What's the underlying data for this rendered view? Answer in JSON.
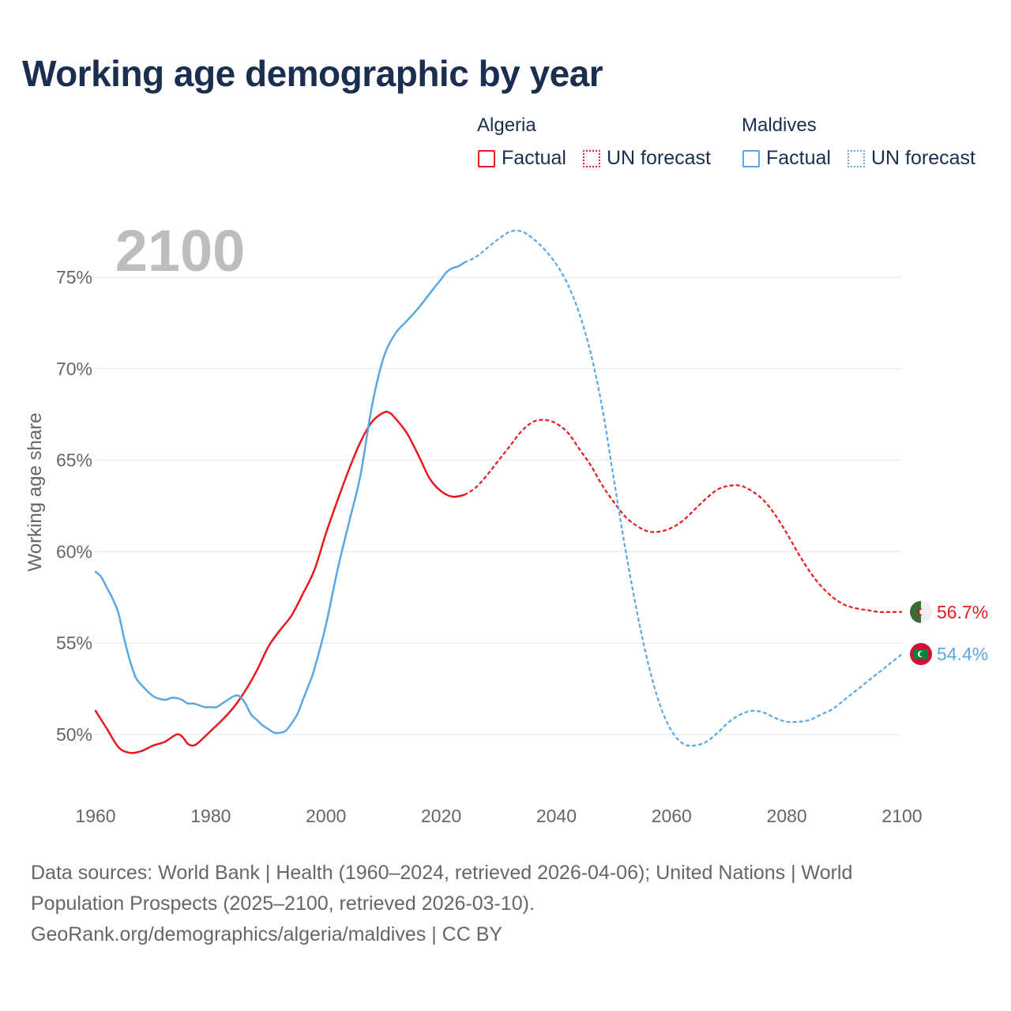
{
  "title": "Working age demographic by year",
  "legend": {
    "groups": [
      {
        "name": "Algeria",
        "color": "#e8191e",
        "items": [
          {
            "label": "Factual",
            "style": "solid"
          },
          {
            "label": "UN forecast",
            "style": "dotted"
          }
        ]
      },
      {
        "name": "Maldives",
        "color": "#5aa7e3",
        "items": [
          {
            "label": "Factual",
            "style": "solid"
          },
          {
            "label": "UN forecast",
            "style": "dotted"
          }
        ]
      }
    ]
  },
  "year_watermark": "2100",
  "footer": {
    "line1": "Data sources: World Bank | Health (1960–2024, retrieved 2026-04-06); United Nations | World",
    "line2": "Population Prospects (2025–2100, retrieved 2026-03-10).",
    "line3": "GeoRank.org/demographics/algeria/maldives | CC BY"
  },
  "chart_data": {
    "type": "line",
    "title": "Working age demographic by year",
    "xlabel": "",
    "ylabel": "Working age share",
    "xlim": [
      1960,
      2100
    ],
    "ylim": [
      47,
      79
    ],
    "xticks": [
      1960,
      1980,
      2000,
      2020,
      2040,
      2060,
      2080,
      2100
    ],
    "xtick_labels": [
      "1960",
      "1980",
      "2000",
      "2020",
      "2040",
      "2060",
      "2080",
      "2100"
    ],
    "yticks": [
      50,
      55,
      60,
      65,
      70,
      75
    ],
    "ytick_labels": [
      "50%",
      "55%",
      "60%",
      "65%",
      "70%",
      "75%"
    ],
    "grid": true,
    "forecast_start": 2024,
    "series": [
      {
        "name": "Algeria",
        "color": "#e8191e",
        "end_label": "56.7%",
        "flag": "algeria",
        "points": [
          [
            1960,
            51.3
          ],
          [
            1962,
            50.3
          ],
          [
            1964,
            49.3
          ],
          [
            1966,
            49.0
          ],
          [
            1968,
            49.1
          ],
          [
            1970,
            49.4
          ],
          [
            1972,
            49.6
          ],
          [
            1974,
            50.0
          ],
          [
            1975,
            49.9
          ],
          [
            1976,
            49.5
          ],
          [
            1977,
            49.4
          ],
          [
            1978,
            49.6
          ],
          [
            1980,
            50.2
          ],
          [
            1982,
            50.8
          ],
          [
            1984,
            51.5
          ],
          [
            1986,
            52.4
          ],
          [
            1988,
            53.5
          ],
          [
            1990,
            54.8
          ],
          [
            1992,
            55.7
          ],
          [
            1994,
            56.5
          ],
          [
            1996,
            57.7
          ],
          [
            1998,
            59.0
          ],
          [
            2000,
            61.0
          ],
          [
            2002,
            62.8
          ],
          [
            2004,
            64.5
          ],
          [
            2006,
            66.0
          ],
          [
            2008,
            67.1
          ],
          [
            2010,
            67.6
          ],
          [
            2011,
            67.6
          ],
          [
            2012,
            67.3
          ],
          [
            2014,
            66.5
          ],
          [
            2016,
            65.3
          ],
          [
            2018,
            64.0
          ],
          [
            2020,
            63.3
          ],
          [
            2022,
            63.0
          ],
          [
            2024,
            63.1
          ],
          [
            2026,
            63.5
          ],
          [
            2028,
            64.2
          ],
          [
            2030,
            65.0
          ],
          [
            2032,
            65.8
          ],
          [
            2034,
            66.6
          ],
          [
            2036,
            67.1
          ],
          [
            2038,
            67.2
          ],
          [
            2040,
            67.0
          ],
          [
            2042,
            66.5
          ],
          [
            2044,
            65.6
          ],
          [
            2046,
            64.7
          ],
          [
            2048,
            63.6
          ],
          [
            2050,
            62.7
          ],
          [
            2052,
            61.9
          ],
          [
            2054,
            61.4
          ],
          [
            2056,
            61.1
          ],
          [
            2058,
            61.1
          ],
          [
            2060,
            61.3
          ],
          [
            2062,
            61.7
          ],
          [
            2064,
            62.3
          ],
          [
            2066,
            62.9
          ],
          [
            2068,
            63.4
          ],
          [
            2070,
            63.6
          ],
          [
            2072,
            63.6
          ],
          [
            2074,
            63.3
          ],
          [
            2076,
            62.8
          ],
          [
            2078,
            62.0
          ],
          [
            2080,
            61.0
          ],
          [
            2082,
            59.9
          ],
          [
            2084,
            58.9
          ],
          [
            2086,
            58.1
          ],
          [
            2088,
            57.5
          ],
          [
            2090,
            57.1
          ],
          [
            2092,
            56.9
          ],
          [
            2094,
            56.8
          ],
          [
            2096,
            56.7
          ],
          [
            2098,
            56.7
          ],
          [
            2100,
            56.7
          ]
        ]
      },
      {
        "name": "Maldives",
        "color": "#5aa7e3",
        "end_label": "54.4%",
        "flag": "maldives",
        "points": [
          [
            1960,
            58.9
          ],
          [
            1961,
            58.6
          ],
          [
            1962,
            58.0
          ],
          [
            1963,
            57.4
          ],
          [
            1964,
            56.6
          ],
          [
            1965,
            55.2
          ],
          [
            1966,
            54.0
          ],
          [
            1967,
            53.1
          ],
          [
            1968,
            52.7
          ],
          [
            1970,
            52.1
          ],
          [
            1972,
            51.9
          ],
          [
            1973,
            52.0
          ],
          [
            1974,
            52.0
          ],
          [
            1975,
            51.9
          ],
          [
            1976,
            51.7
          ],
          [
            1977,
            51.7
          ],
          [
            1978,
            51.6
          ],
          [
            1979,
            51.5
          ],
          [
            1980,
            51.5
          ],
          [
            1981,
            51.5
          ],
          [
            1982,
            51.7
          ],
          [
            1983,
            51.9
          ],
          [
            1984,
            52.1
          ],
          [
            1985,
            52.1
          ],
          [
            1986,
            51.7
          ],
          [
            1987,
            51.1
          ],
          [
            1988,
            50.8
          ],
          [
            1989,
            50.5
          ],
          [
            1990,
            50.3
          ],
          [
            1991,
            50.1
          ],
          [
            1992,
            50.1
          ],
          [
            1993,
            50.2
          ],
          [
            1994,
            50.6
          ],
          [
            1995,
            51.1
          ],
          [
            1996,
            51.9
          ],
          [
            1997,
            52.7
          ],
          [
            1998,
            53.6
          ],
          [
            2000,
            56.0
          ],
          [
            2002,
            59.0
          ],
          [
            2004,
            61.6
          ],
          [
            2006,
            64.2
          ],
          [
            2008,
            68.0
          ],
          [
            2010,
            70.6
          ],
          [
            2012,
            71.9
          ],
          [
            2014,
            72.6
          ],
          [
            2016,
            73.3
          ],
          [
            2018,
            74.1
          ],
          [
            2020,
            74.9
          ],
          [
            2021,
            75.3
          ],
          [
            2022,
            75.5
          ],
          [
            2023,
            75.6
          ],
          [
            2024,
            75.8
          ],
          [
            2026,
            76.1
          ],
          [
            2028,
            76.6
          ],
          [
            2030,
            77.1
          ],
          [
            2032,
            77.5
          ],
          [
            2034,
            77.5
          ],
          [
            2036,
            77.1
          ],
          [
            2038,
            76.5
          ],
          [
            2040,
            75.7
          ],
          [
            2042,
            74.6
          ],
          [
            2044,
            73.0
          ],
          [
            2046,
            70.8
          ],
          [
            2048,
            67.8
          ],
          [
            2050,
            63.9
          ],
          [
            2052,
            60.1
          ],
          [
            2054,
            56.7
          ],
          [
            2056,
            53.8
          ],
          [
            2058,
            51.6
          ],
          [
            2060,
            50.2
          ],
          [
            2062,
            49.5
          ],
          [
            2064,
            49.4
          ],
          [
            2066,
            49.6
          ],
          [
            2068,
            50.1
          ],
          [
            2070,
            50.7
          ],
          [
            2072,
            51.1
          ],
          [
            2074,
            51.3
          ],
          [
            2076,
            51.2
          ],
          [
            2078,
            50.9
          ],
          [
            2080,
            50.7
          ],
          [
            2082,
            50.7
          ],
          [
            2084,
            50.8
          ],
          [
            2086,
            51.1
          ],
          [
            2088,
            51.4
          ],
          [
            2090,
            51.9
          ],
          [
            2092,
            52.4
          ],
          [
            2094,
            52.9
          ],
          [
            2096,
            53.4
          ],
          [
            2098,
            53.9
          ],
          [
            2100,
            54.4
          ]
        ]
      }
    ]
  }
}
